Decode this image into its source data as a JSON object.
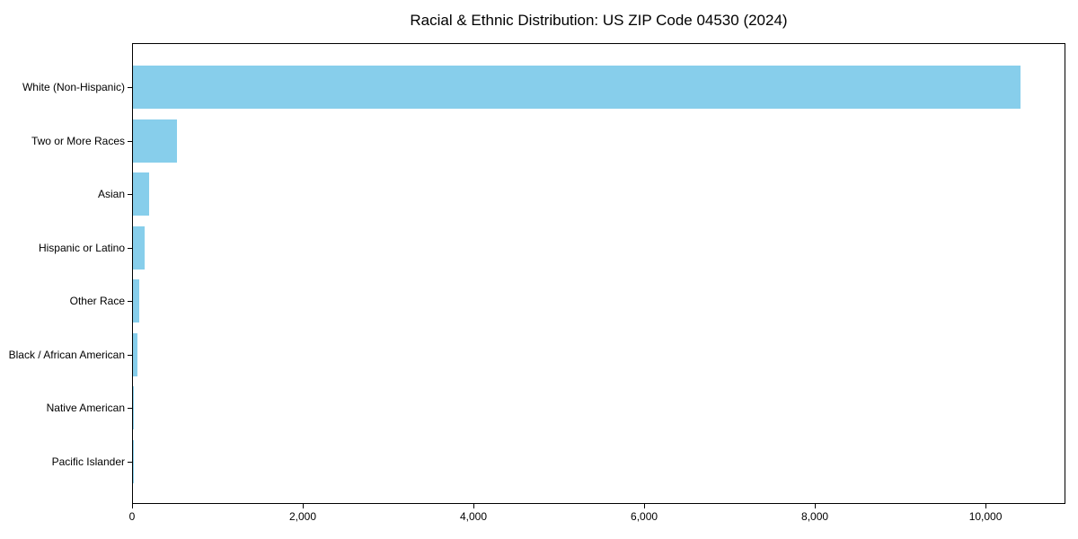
{
  "chart_data": {
    "type": "bar",
    "orientation": "horizontal",
    "title": "Racial & Ethnic Distribution: US ZIP Code 04530 (2024)",
    "categories": [
      "White (Non-Hispanic)",
      "Two or More Races",
      "Asian",
      "Hispanic or Latino",
      "Other Race",
      "Black / African American",
      "Native American",
      "Pacific Islander"
    ],
    "values": [
      10400,
      520,
      190,
      135,
      70,
      50,
      12,
      3
    ],
    "xlabel": "",
    "ylabel": "",
    "xlim": [
      0,
      10915
    ],
    "x_ticks": [
      0,
      2000,
      4000,
      6000,
      8000,
      10000
    ],
    "x_tick_labels": [
      "0",
      "2,000",
      "4,000",
      "6,000",
      "8,000",
      "10,000"
    ],
    "bar_color": "#87CEEB",
    "frame_color": "#000000",
    "grid": false,
    "legend_position": "none"
  }
}
